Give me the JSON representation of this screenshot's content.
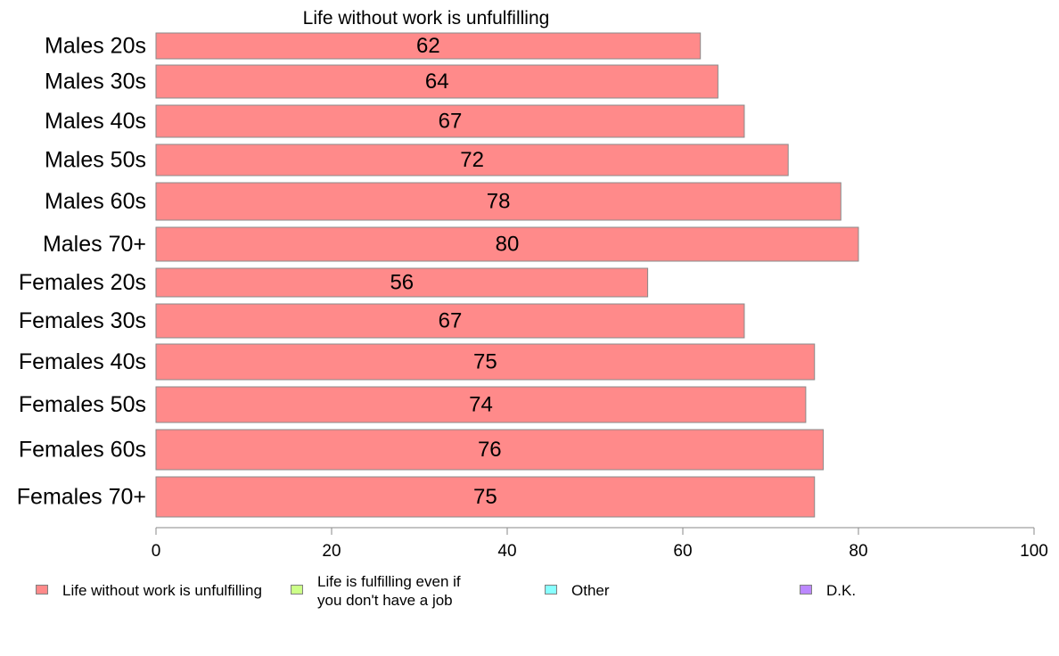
{
  "chart_data": {
    "type": "bar",
    "orientation": "horizontal",
    "title": "Life without work is unfulfilling",
    "categories": [
      "Males 20s",
      "Males 30s",
      "Males 40s",
      "Males 50s",
      "Males 60s",
      "Males 70+",
      "Females 20s",
      "Females 30s",
      "Females 40s",
      "Females 50s",
      "Females 60s",
      "Females 70+"
    ],
    "series": [
      {
        "name": "Life without work is unfulfilling",
        "values": [
          62,
          64,
          67,
          72,
          78,
          80,
          56,
          67,
          75,
          74,
          76,
          75
        ],
        "color": "#ff8a8a"
      }
    ],
    "value_labels": [
      "62",
      "64",
      "67",
      "72",
      "78",
      "80",
      "56",
      "67",
      "75",
      "74",
      "76",
      "75"
    ],
    "xlim": [
      0,
      100
    ],
    "xticks": [
      0,
      20,
      40,
      60,
      80,
      100
    ],
    "xtick_labels": [
      "0",
      "20",
      "40",
      "60",
      "80",
      "100"
    ],
    "grid": false,
    "legend_placement": "bottom",
    "legend": [
      {
        "label_lines": [
          "Life without work is unfulfilling"
        ],
        "color": "#ff8a8a"
      },
      {
        "label_lines": [
          "Life is fulfilling even if",
          "you don't have a job"
        ],
        "color": "#ccff88"
      },
      {
        "label_lines": [
          "Other"
        ],
        "color": "#88ffff"
      },
      {
        "label_lines": [
          "D.K."
        ],
        "color": "#bb88ff"
      }
    ]
  }
}
